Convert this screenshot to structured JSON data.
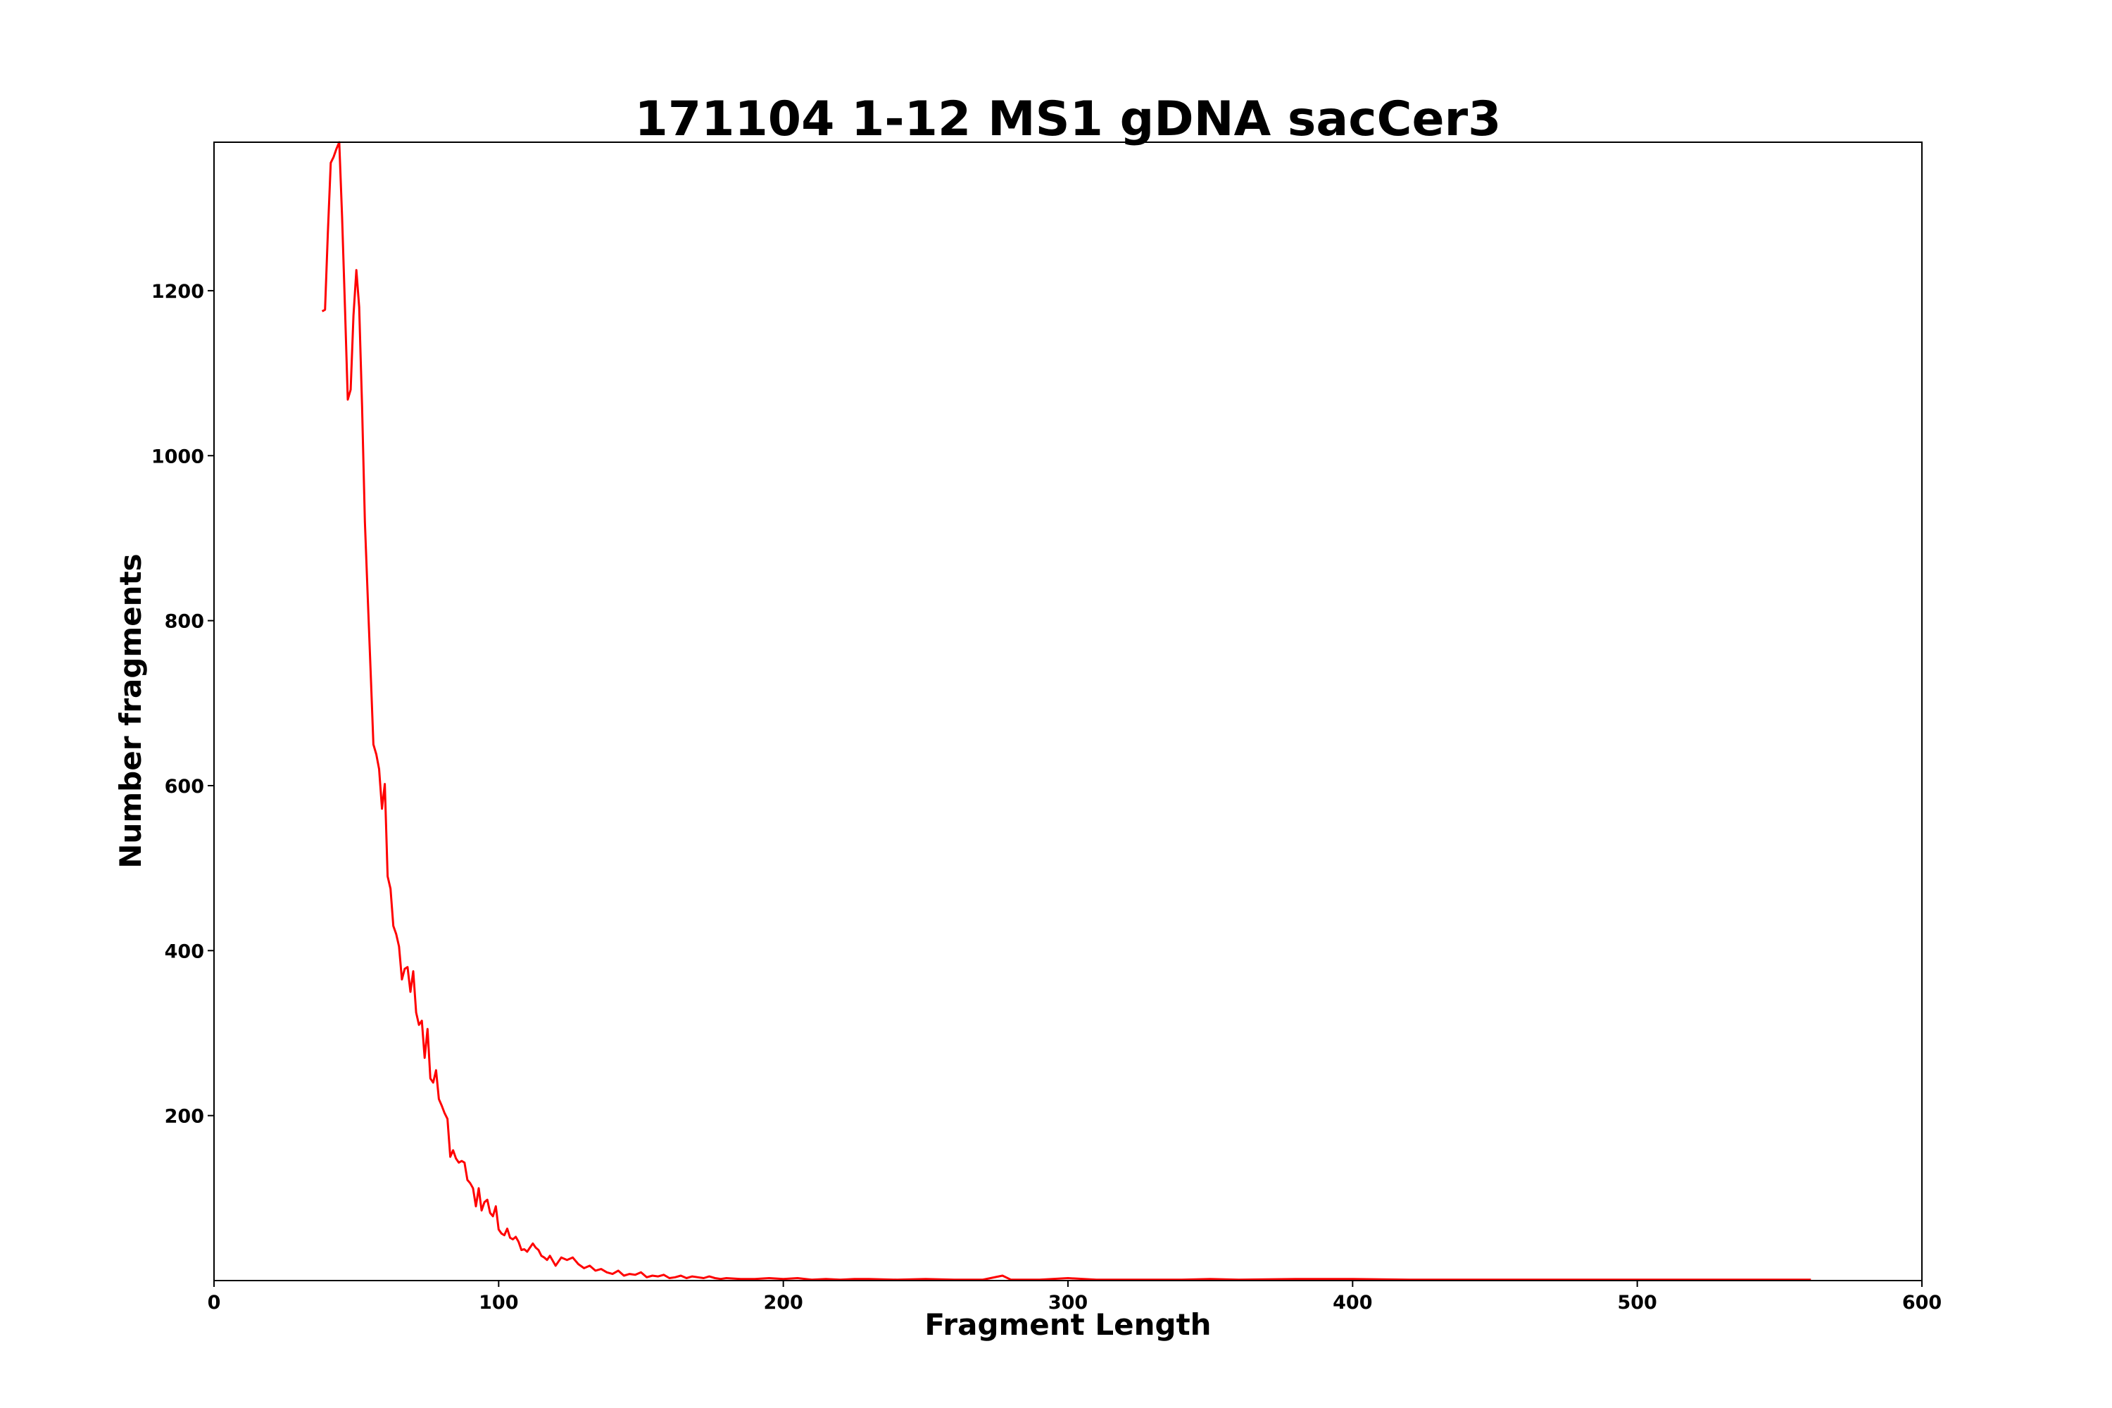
{
  "chart_data": {
    "type": "line",
    "title": "171104 1-12 MS1 gDNA sacCer3",
    "xlabel": "Fragment Length",
    "ylabel": "Number fragments",
    "xlim": [
      0,
      600
    ],
    "ylim": [
      0,
      1380
    ],
    "x_ticks": [
      0,
      100,
      200,
      300,
      400,
      500,
      600
    ],
    "y_ticks": [
      200,
      400,
      600,
      800,
      1000,
      1200
    ],
    "grid": false,
    "legend": "none",
    "series": [
      {
        "color": "#ff0000",
        "x": [
          38,
          39,
          40,
          41,
          42,
          43,
          44,
          45,
          46,
          47,
          48,
          49,
          50,
          51,
          52,
          53,
          54,
          55,
          56,
          57,
          58,
          59,
          60,
          61,
          62,
          63,
          64,
          65,
          66,
          67,
          68,
          69,
          70,
          71,
          72,
          73,
          74,
          75,
          76,
          77,
          78,
          79,
          80,
          81,
          82,
          83,
          84,
          85,
          86,
          87,
          88,
          89,
          90,
          91,
          92,
          93,
          94,
          95,
          96,
          97,
          98,
          99,
          100,
          101,
          102,
          103,
          104,
          105,
          106,
          107,
          108,
          109,
          110,
          111,
          112,
          113,
          114,
          115,
          116,
          117,
          118,
          119,
          120,
          122,
          124,
          126,
          128,
          130,
          132,
          134,
          136,
          138,
          140,
          142,
          144,
          146,
          148,
          150,
          152,
          154,
          156,
          158,
          160,
          162,
          164,
          166,
          168,
          170,
          172,
          174,
          176,
          178,
          180,
          185,
          190,
          195,
          200,
          205,
          210,
          215,
          220,
          225,
          230,
          240,
          250,
          260,
          270,
          277,
          280,
          290,
          300,
          310,
          320,
          340,
          350,
          360,
          380,
          400,
          420,
          450,
          500,
          561
        ],
        "y": [
          1175,
          1177,
          1270,
          1355,
          1362,
          1372,
          1380,
          1290,
          1180,
          1068,
          1080,
          1170,
          1225,
          1180,
          1060,
          920,
          830,
          740,
          650,
          638,
          620,
          572,
          602,
          490,
          475,
          430,
          420,
          405,
          365,
          378,
          380,
          350,
          375,
          325,
          310,
          315,
          270,
          305,
          245,
          240,
          255,
          220,
          212,
          203,
          196,
          150,
          158,
          148,
          143,
          145,
          143,
          122,
          118,
          112,
          90,
          112,
          85,
          95,
          98,
          82,
          78,
          90,
          62,
          57,
          55,
          63,
          52,
          50,
          53,
          47,
          37,
          38,
          35,
          40,
          45,
          40,
          37,
          30,
          28,
          25,
          30,
          24,
          18,
          28,
          25,
          28,
          20,
          15,
          18,
          12,
          14,
          10,
          8,
          12,
          6,
          8,
          7,
          10,
          4,
          6,
          5,
          7,
          3,
          4,
          6,
          3,
          5,
          4,
          3,
          5,
          3,
          2,
          3,
          2,
          2,
          3,
          2,
          3,
          1,
          2,
          1,
          2,
          2,
          1,
          2,
          1,
          1,
          6,
          1,
          1,
          3,
          1,
          1,
          1,
          2,
          1,
          2,
          2,
          1,
          1,
          1,
          1
        ]
      }
    ]
  }
}
